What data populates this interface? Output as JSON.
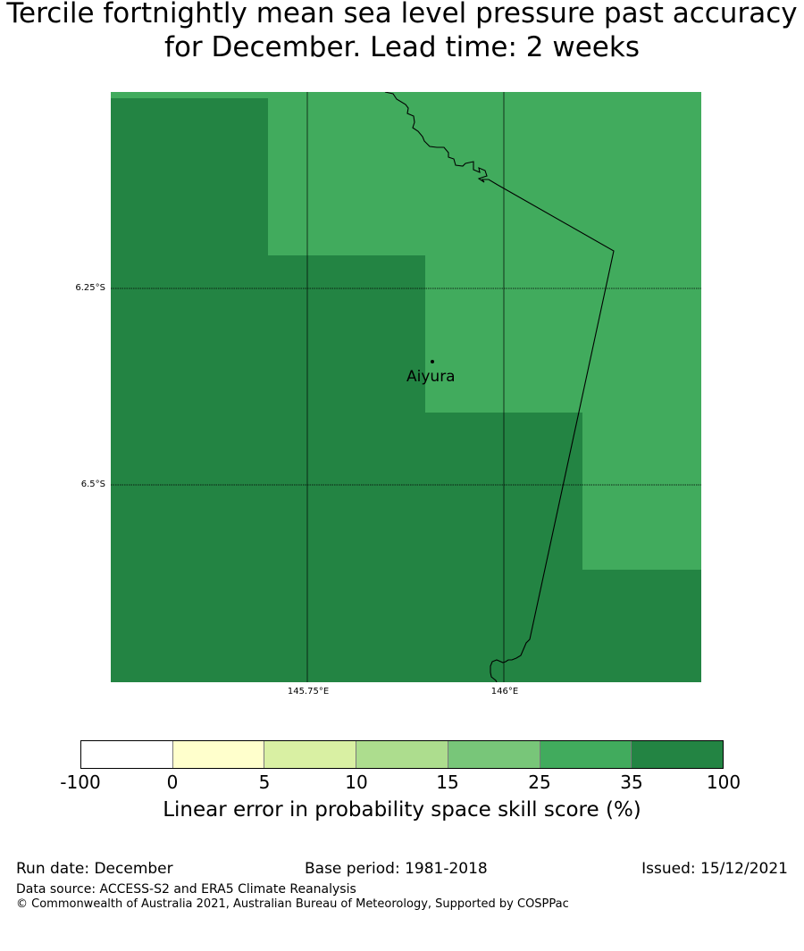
{
  "title": "Tercile fortnightly mean sea level pressure past accuracy for December. Lead time: 2 weeks",
  "map": {
    "lat_labels": [
      "6.25°S",
      "6.5°S"
    ],
    "lon_labels": [
      "145.75°E",
      "146°E"
    ],
    "place": "Aiyura",
    "cell_colors": {
      "high": "#238443",
      "mid": "#41ab5d"
    }
  },
  "colorbar": {
    "ticks": [
      "-100",
      "0",
      "5",
      "10",
      "15",
      "25",
      "35",
      "100"
    ],
    "colors": [
      "#ffffff",
      "#ffffcc",
      "#d9f0a3",
      "#addd8e",
      "#78c679",
      "#41ab5d",
      "#238443"
    ],
    "label": "Linear error in probability space skill score (%)"
  },
  "footer": {
    "run_date": "Run date: December",
    "base_period": "Base period: 1981-2018",
    "issued": "Issued: 15/12/2021",
    "data_source": "Data source: ACCESS-S2 and ERA5 Climate Reanalysis",
    "copyright": "© Commonwealth of Australia 2021, Australian Bureau of Meteorology, Supported by COSPPac"
  }
}
